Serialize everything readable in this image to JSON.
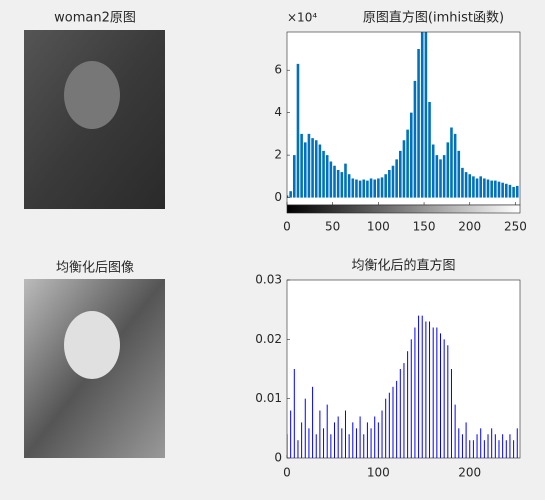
{
  "images": [
    {
      "title": "woman2原图"
    },
    {
      "title": "均衡化后图像"
    }
  ],
  "chart_data": [
    {
      "type": "stem",
      "title": "原图直方图(imhist函数)",
      "y_exponent_label": "×10⁴",
      "color": "#0072bd",
      "x": [
        0,
        4,
        8,
        12,
        16,
        20,
        24,
        28,
        32,
        36,
        40,
        44,
        48,
        52,
        56,
        60,
        64,
        68,
        72,
        76,
        80,
        84,
        88,
        92,
        96,
        100,
        104,
        108,
        112,
        116,
        120,
        124,
        128,
        132,
        136,
        140,
        144,
        148,
        152,
        156,
        160,
        164,
        168,
        172,
        176,
        180,
        184,
        188,
        192,
        196,
        200,
        204,
        208,
        212,
        216,
        220,
        224,
        228,
        232,
        236,
        240,
        244,
        248,
        252
      ],
      "values": [
        1000,
        3000,
        20000,
        63000,
        30000,
        26000,
        30000,
        28000,
        27000,
        25000,
        22000,
        20000,
        17000,
        15000,
        13000,
        12000,
        16000,
        11000,
        9000,
        8500,
        8000,
        8500,
        8000,
        9000,
        8500,
        9000,
        9500,
        11000,
        13000,
        15000,
        18000,
        22000,
        27000,
        32000,
        40000,
        55000,
        70000,
        85000,
        80000,
        45000,
        25000,
        20000,
        18000,
        20000,
        26000,
        33000,
        30000,
        22000,
        14000,
        12000,
        11000,
        10000,
        9000,
        10000,
        9000,
        8500,
        8000,
        8000,
        7500,
        7000,
        6500,
        6000,
        5000,
        5500
      ],
      "xlim": [
        0,
        255
      ],
      "xticks": [
        0,
        50,
        100,
        150,
        200,
        250
      ],
      "ylim": [
        -3500,
        78000
      ],
      "yticks": [
        {
          "value": 0,
          "label": "0"
        },
        {
          "value": 20000,
          "label": "2"
        },
        {
          "value": 40000,
          "label": "4"
        },
        {
          "value": 60000,
          "label": "6"
        }
      ],
      "colorbar": true
    },
    {
      "type": "stem",
      "title": "均衡化后的直方图",
      "color": "#0000ff",
      "x": [
        0,
        4,
        8,
        12,
        16,
        20,
        24,
        28,
        32,
        36,
        40,
        44,
        48,
        52,
        56,
        60,
        64,
        68,
        72,
        76,
        80,
        84,
        88,
        92,
        96,
        100,
        104,
        108,
        112,
        116,
        120,
        124,
        128,
        132,
        136,
        140,
        144,
        148,
        152,
        156,
        160,
        164,
        168,
        172,
        176,
        180,
        184,
        188,
        192,
        196,
        200,
        204,
        208,
        212,
        216,
        220,
        224,
        228,
        232,
        236,
        240,
        244,
        248,
        252
      ],
      "values": [
        0.004,
        0.008,
        0.015,
        0.003,
        0.006,
        0.01,
        0.005,
        0.012,
        0.004,
        0.008,
        0.005,
        0.009,
        0.004,
        0.006,
        0.007,
        0.005,
        0.008,
        0.004,
        0.006,
        0.005,
        0.007,
        0.004,
        0.006,
        0.005,
        0.007,
        0.006,
        0.008,
        0.01,
        0.011,
        0.012,
        0.013,
        0.015,
        0.016,
        0.018,
        0.02,
        0.022,
        0.024,
        0.024,
        0.023,
        0.023,
        0.022,
        0.022,
        0.021,
        0.02,
        0.019,
        0.015,
        0.009,
        0.005,
        0.004,
        0.006,
        0.003,
        0.003,
        0.004,
        0.005,
        0.003,
        0.004,
        0.005,
        0.004,
        0.003,
        0.004,
        0.003,
        0.004,
        0.003,
        0.005
      ],
      "xlim": [
        0,
        255
      ],
      "xticks": [
        0,
        100,
        200
      ],
      "ylim": [
        0,
        0.03
      ],
      "yticks": [
        0,
        0.01,
        0.02,
        0.03
      ],
      "colorbar": false
    }
  ]
}
